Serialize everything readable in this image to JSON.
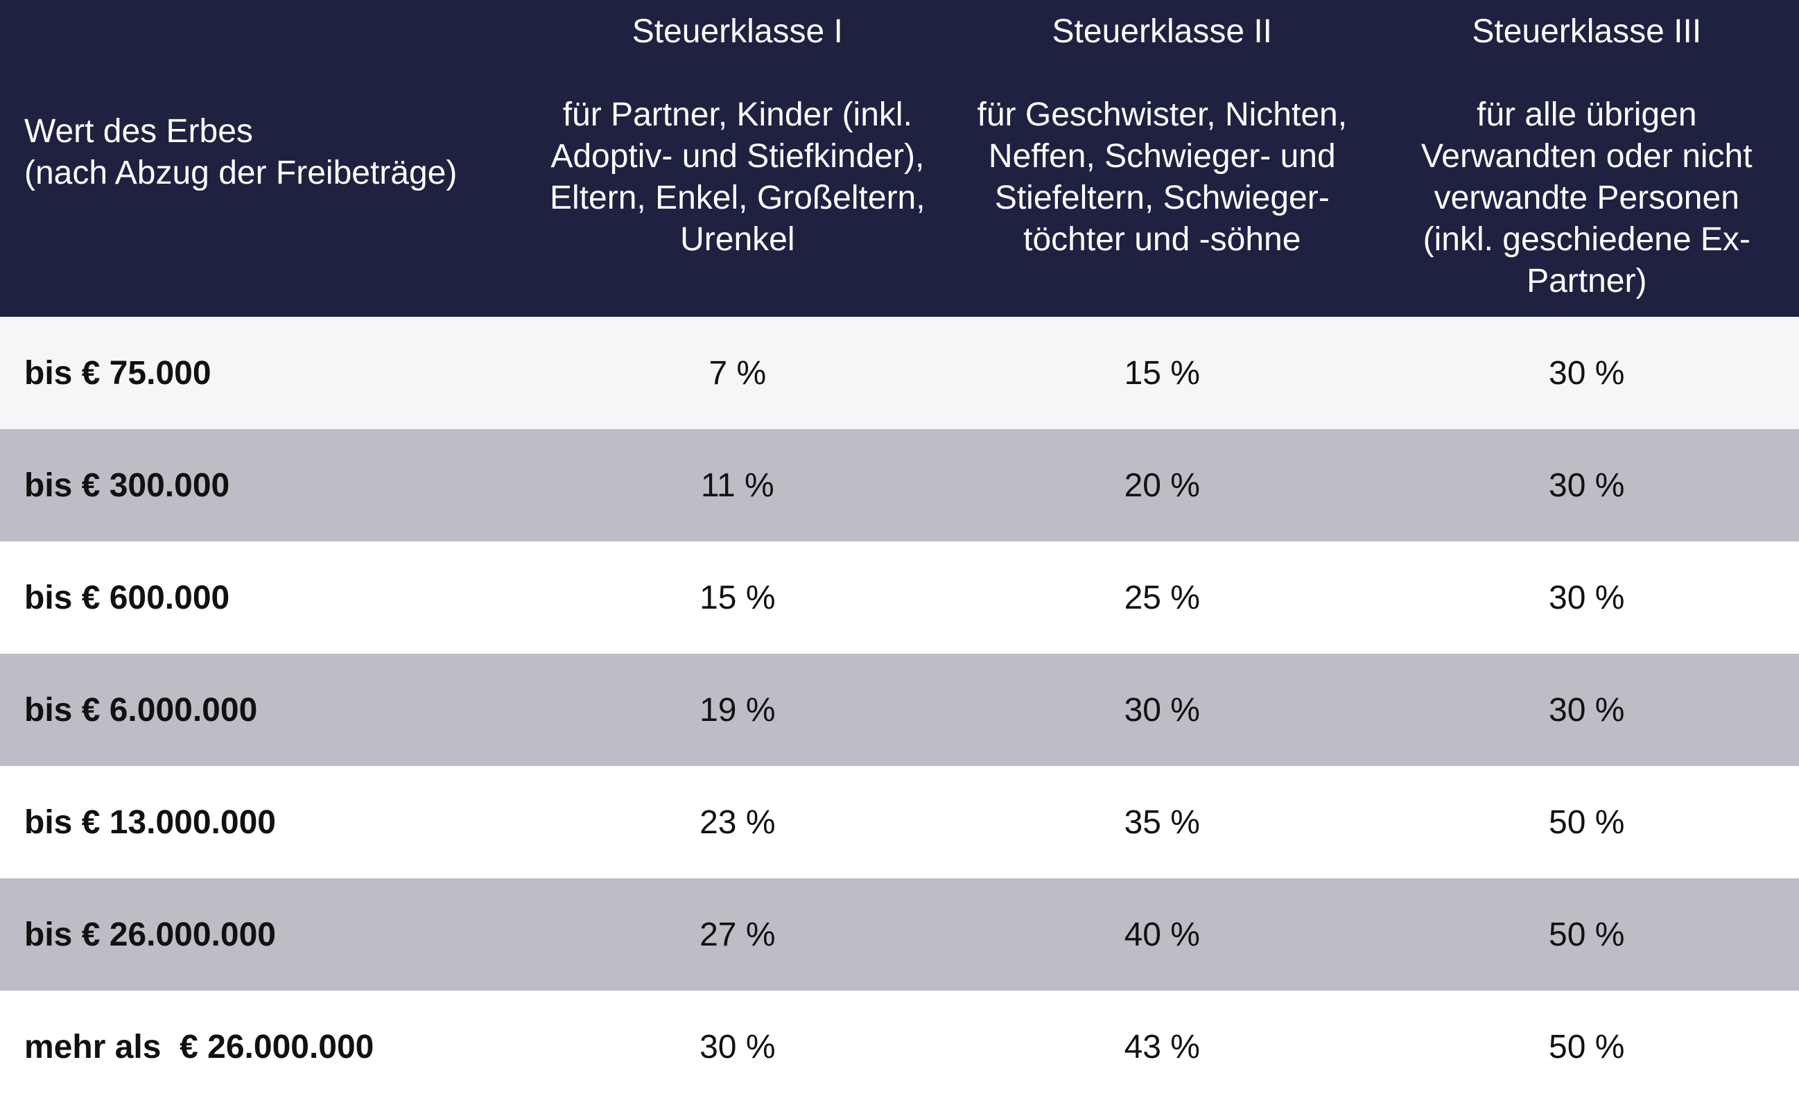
{
  "table": {
    "header": {
      "first": [
        "Wert des Erbes",
        "(nach Abzug der Freibeträge)"
      ],
      "columns": [
        {
          "title": "Steuerklasse I",
          "description": "für Partner, Kinder (inkl. Adoptiv- und Stiefkinder), Eltern, Enkel, Großeltern, Urenkel"
        },
        {
          "title": "Steuerklasse II",
          "description": "für Geschwister, Nichten, Neffen, Schwieger- und Stiefeltern, Schwieger­töchter und -söhne"
        },
        {
          "title": "Steuerklasse III",
          "description": "für alle übrigen Verwandten oder nicht verwandte Personen (inkl. geschiedene Ex-Partner)"
        }
      ]
    },
    "rows": [
      [
        "bis € 75.000",
        "7 %",
        "15 %",
        "30 %"
      ],
      [
        "bis € 300.000",
        "11 %",
        "20 %",
        "30 %"
      ],
      [
        "bis € 600.000",
        "15 %",
        "25 %",
        "30 %"
      ],
      [
        "bis € 6.000.000",
        "19 %",
        "30 %",
        "30 %"
      ],
      [
        "bis € 13.000.000",
        "23 %",
        "35 %",
        "50 %"
      ],
      [
        "bis € 26.000.000",
        "27 %",
        "40 %",
        "50 %"
      ],
      [
        "mehr als  € 26.000.000",
        "30 %",
        "43 %",
        "50 %"
      ]
    ]
  }
}
